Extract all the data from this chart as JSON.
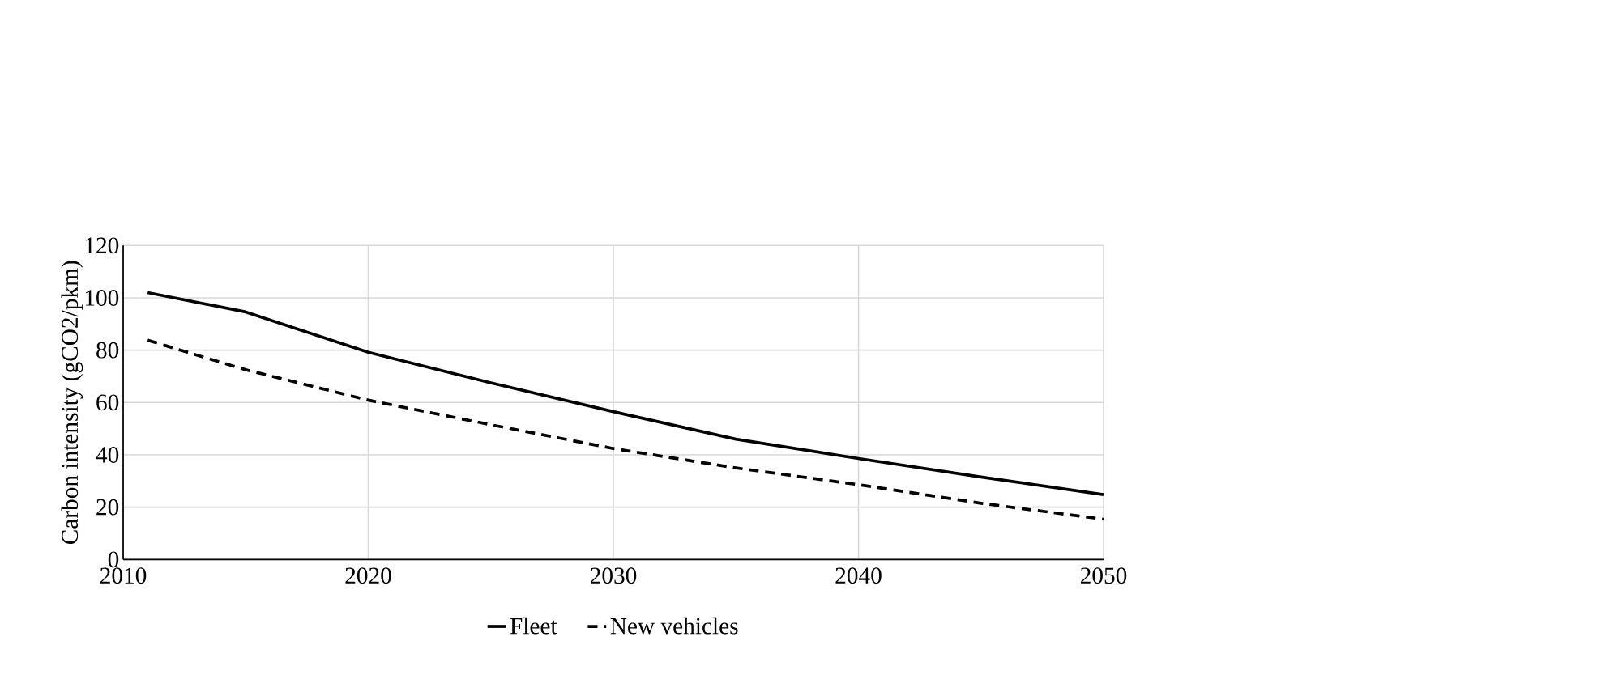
{
  "chart_data": {
    "type": "line",
    "ylabel": "Carbon intensity (gCO2/pkm)",
    "x": [
      2011,
      2015,
      2020,
      2025,
      2030,
      2035,
      2040,
      2045,
      2050
    ],
    "series": [
      {
        "name": "Fleet",
        "color": "#000000",
        "line_style": "solid",
        "values": [
          102,
          94.6,
          79.2,
          67.5,
          56.5,
          46,
          38.6,
          31.5,
          24.8
        ]
      },
      {
        "name": "New vehicles",
        "color": "#000000",
        "line_style": "dashed",
        "values": [
          83.8,
          72.5,
          60.9,
          51.5,
          42.4,
          35,
          28.6,
          21.5,
          15.4
        ]
      }
    ],
    "xlim": [
      2010,
      2050
    ],
    "xticks": [
      2010,
      2020,
      2030,
      2040,
      2050
    ],
    "ylim": [
      0,
      120
    ],
    "yticks": [
      0,
      20,
      40,
      60,
      80,
      100,
      120
    ],
    "grid": true,
    "legend": "bottom"
  }
}
